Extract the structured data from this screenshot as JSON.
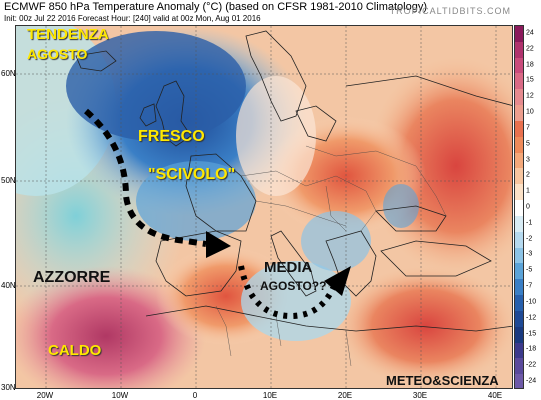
{
  "header": {
    "title": "ECMWF 850 hPa Temperature Anomaly (°C) (based on CFSR 1981-2010 Climatology)",
    "subtitle": "Init: 00z Jul 22 2016   Forecast Hour: [240]   valid at 00z Mon, Aug 01 2016",
    "site": "TROPICALTIDBITS.COM"
  },
  "axes": {
    "lat_labels": [
      "60N",
      "50N",
      "40N",
      "30N"
    ],
    "lon_labels": [
      "20W",
      "10W",
      "0",
      "10E",
      "20E",
      "30E",
      "40E"
    ]
  },
  "colorbar": {
    "labels": [
      "24",
      "22",
      "18",
      "15",
      "12",
      "10",
      "7",
      "5",
      "3",
      "2",
      "1",
      "0",
      "-1",
      "-2",
      "-3",
      "-5",
      "-7",
      "-10",
      "-12",
      "-15",
      "-18",
      "-22",
      "-24"
    ],
    "colors": [
      "#8b1a5c",
      "#b0336e",
      "#c94c7c",
      "#d96a86",
      "#e58a8f",
      "#ec9e8e",
      "#e9714f",
      "#ef8a5a",
      "#f4a87a",
      "#f7c59f",
      "#fbe1c7",
      "#ffffff",
      "#d8ecf5",
      "#b5d9ef",
      "#8cc3e6",
      "#5ba3d8",
      "#3a7fc6",
      "#2760ad",
      "#1f4a96",
      "#1a3a80",
      "#3c3a8c",
      "#5a4a9c",
      "#6e5aa8"
    ]
  },
  "annotations": {
    "tendenza": "TENDENZA",
    "agosto": "AGOSTO",
    "fresco": "FRESCO",
    "scivolo": "\"SCIVOLO\"",
    "azzorre": "AZZORRE",
    "caldo": "CALDO",
    "media": "MEDIA",
    "media_agosto": "AGOSTO??",
    "credit": "METEO&SCIENZA"
  },
  "legend_colors": {
    "warm_strong": "#c4455a",
    "warm": "#e8895a",
    "warm_light": "#f6c29a",
    "neutral": "#ffffff",
    "cool_light": "#9dd3f0",
    "cool": "#3e7fc8",
    "cool_strong": "#1f4a96"
  }
}
